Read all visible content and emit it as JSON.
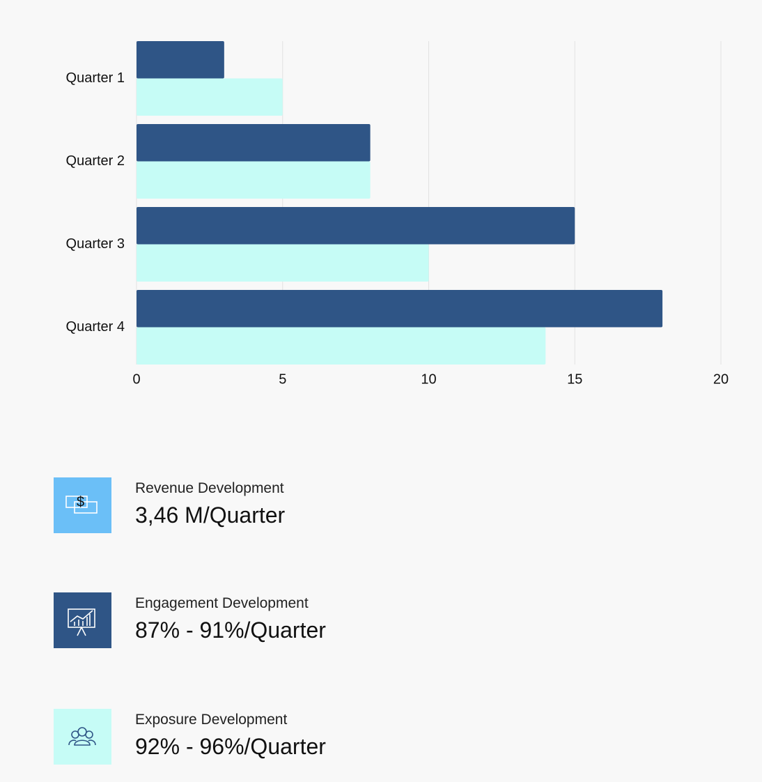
{
  "chart_data": {
    "type": "hbar",
    "categories": [
      "Quarter 1",
      "Quarter 2",
      "Quarter 3",
      "Quarter 4"
    ],
    "series": [
      {
        "color": "#2f5586",
        "values": [
          3,
          8,
          15,
          18
        ]
      },
      {
        "color": "#c6fcf6",
        "values": [
          5,
          8,
          10,
          14
        ]
      }
    ],
    "xlim": [
      0,
      20
    ],
    "xticks": [
      0,
      5,
      10,
      15,
      20
    ],
    "grid": true
  },
  "stats": [
    {
      "label": "Revenue Development",
      "value": "3,46 M/Quarter"
    },
    {
      "label": "Engagement Development",
      "value": "87% - 91%/Quarter"
    },
    {
      "label": "Exposure Development",
      "value": "92% - 96%/Quarter"
    }
  ]
}
